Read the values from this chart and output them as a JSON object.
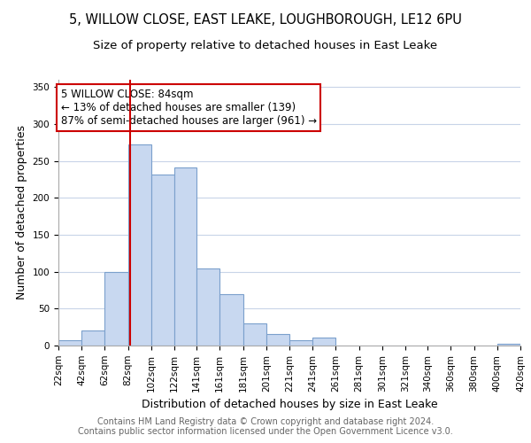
{
  "title_line1": "5, WILLOW CLOSE, EAST LEAKE, LOUGHBOROUGH, LE12 6PU",
  "title_line2": "Size of property relative to detached houses in East Leake",
  "xlabel": "Distribution of detached houses by size in East Leake",
  "ylabel": "Number of detached properties",
  "bin_edges": [
    22,
    42,
    62,
    82,
    102,
    122,
    141,
    161,
    181,
    201,
    221,
    241,
    261,
    281,
    301,
    321,
    340,
    360,
    380,
    400,
    420
  ],
  "bar_heights": [
    7,
    20,
    100,
    272,
    232,
    241,
    105,
    70,
    30,
    16,
    7,
    11,
    0,
    0,
    0,
    0,
    0,
    0,
    0,
    2
  ],
  "bar_color": "#c8d8f0",
  "bar_edge_color": "#7ba0cc",
  "property_size": 84,
  "red_line_color": "#cc0000",
  "annotation_text": "5 WILLOW CLOSE: 84sqm\n← 13% of detached houses are smaller (139)\n87% of semi-detached houses are larger (961) →",
  "annotation_box_color": "#ffffff",
  "annotation_box_edge_color": "#cc0000",
  "ylim": [
    0,
    360
  ],
  "yticks": [
    0,
    50,
    100,
    150,
    200,
    250,
    300,
    350
  ],
  "footer_line1": "Contains HM Land Registry data © Crown copyright and database right 2024.",
  "footer_line2": "Contains public sector information licensed under the Open Government Licence v3.0.",
  "background_color": "#ffffff",
  "grid_color": "#c8d4e8",
  "title_fontsize": 10.5,
  "subtitle_fontsize": 9.5,
  "tick_label_fontsize": 7.5,
  "axis_label_fontsize": 9,
  "annotation_fontsize": 8.5,
  "footer_fontsize": 7
}
